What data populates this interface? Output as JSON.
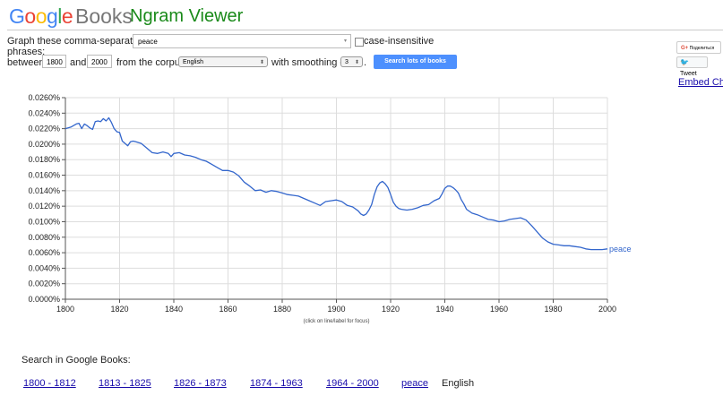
{
  "header": {
    "brand_google": "Google",
    "brand_books": "Books",
    "app_title": "Ngram Viewer"
  },
  "form": {
    "graph_label": "Graph these comma-separated",
    "phrases_label": "phrases:",
    "query_value": "peace",
    "case_insensitive_label": "case-insensitive",
    "case_insensitive_checked": false,
    "between_label": "between",
    "year_start": "1800",
    "and_label": "and",
    "year_end": "2000",
    "corpus_label": "from the corpus",
    "corpus_value": "English",
    "smoothing_label": "with smoothing of",
    "smoothing_value": "3",
    "period": ".",
    "search_button": "Search lots of books"
  },
  "share": {
    "gplus_icon": "G+",
    "gplus_label": "Поделиться",
    "tweet_icon": "twitter-bird-icon",
    "tweet_label": "Tweet",
    "embed_label": "Embed Cha"
  },
  "chart_data": {
    "type": "line",
    "xlim": [
      1800,
      2000
    ],
    "ylim": [
      0,
      0.026
    ],
    "x_ticks": [
      "1800",
      "1820",
      "1840",
      "1860",
      "1880",
      "1900",
      "1920",
      "1940",
      "1960",
      "1980",
      "2000"
    ],
    "y_ticks": [
      "0.0000%",
      "0.0020%",
      "0.0040%",
      "0.0060%",
      "0.0080%",
      "0.0100%",
      "0.0120%",
      "0.0140%",
      "0.0160%",
      "0.0180%",
      "0.0200%",
      "0.0220%",
      "0.0240%",
      "0.0260%"
    ],
    "note": "(click on line/label for focus)",
    "grid": true,
    "series": [
      {
        "name": "peace",
        "color": "#3366cc",
        "x": [
          1800,
          1802,
          1804,
          1805,
          1806,
          1807,
          1808,
          1809,
          1810,
          1811,
          1812,
          1813,
          1814,
          1815,
          1816,
          1817,
          1818,
          1819,
          1820,
          1821,
          1822,
          1823,
          1824,
          1825,
          1826,
          1828,
          1830,
          1832,
          1834,
          1836,
          1838,
          1839,
          1840,
          1842,
          1844,
          1846,
          1848,
          1850,
          1852,
          1854,
          1856,
          1858,
          1860,
          1862,
          1864,
          1866,
          1868,
          1870,
          1872,
          1874,
          1876,
          1878,
          1880,
          1882,
          1884,
          1886,
          1888,
          1890,
          1892,
          1894,
          1896,
          1898,
          1900,
          1902,
          1904,
          1906,
          1908,
          1909,
          1910,
          1911,
          1912,
          1913,
          1914,
          1915,
          1916,
          1917,
          1918,
          1919,
          1920,
          1921,
          1922,
          1923,
          1924,
          1926,
          1928,
          1930,
          1932,
          1934,
          1936,
          1938,
          1939,
          1940,
          1941,
          1942,
          1943,
          1944,
          1945,
          1946,
          1947,
          1948,
          1950,
          1952,
          1954,
          1956,
          1958,
          1960,
          1962,
          1964,
          1966,
          1968,
          1970,
          1972,
          1974,
          1976,
          1978,
          1980,
          1982,
          1984,
          1986,
          1988,
          1990,
          1992,
          1994,
          1996,
          1998,
          2000
        ],
        "y": [
          0.022,
          0.0222,
          0.0226,
          0.0227,
          0.022,
          0.0226,
          0.0224,
          0.0221,
          0.0219,
          0.0229,
          0.023,
          0.0229,
          0.0233,
          0.023,
          0.0234,
          0.0228,
          0.022,
          0.0216,
          0.0215,
          0.0204,
          0.0201,
          0.0198,
          0.0203,
          0.0204,
          0.0203,
          0.0201,
          0.0195,
          0.0189,
          0.0188,
          0.019,
          0.0188,
          0.0184,
          0.0188,
          0.0189,
          0.0186,
          0.0185,
          0.0183,
          0.018,
          0.0178,
          0.0174,
          0.017,
          0.0166,
          0.0166,
          0.0164,
          0.0159,
          0.0151,
          0.0146,
          0.014,
          0.0141,
          0.0138,
          0.014,
          0.0139,
          0.0137,
          0.0135,
          0.0134,
          0.0133,
          0.013,
          0.0127,
          0.0124,
          0.0121,
          0.0126,
          0.0127,
          0.0128,
          0.0126,
          0.0121,
          0.0119,
          0.0114,
          0.011,
          0.0108,
          0.011,
          0.0115,
          0.0122,
          0.0135,
          0.0145,
          0.015,
          0.0152,
          0.0149,
          0.0144,
          0.0135,
          0.0125,
          0.012,
          0.0117,
          0.0116,
          0.0115,
          0.0116,
          0.0118,
          0.0121,
          0.0122,
          0.0127,
          0.013,
          0.0136,
          0.0143,
          0.0146,
          0.0146,
          0.0144,
          0.0141,
          0.0137,
          0.0129,
          0.0123,
          0.0116,
          0.0111,
          0.0109,
          0.0106,
          0.0103,
          0.0102,
          0.01,
          0.0101,
          0.0103,
          0.0104,
          0.0105,
          0.0102,
          0.0095,
          0.0087,
          0.0079,
          0.0074,
          0.0071,
          0.007,
          0.0069,
          0.0069,
          0.0068,
          0.0067,
          0.0065,
          0.0064,
          0.0064,
          0.0064,
          0.0065
        ]
      }
    ]
  },
  "footer": {
    "search_label": "Search in Google Books:",
    "ranges": [
      "1800 - 1812",
      "1813 - 1825",
      "1826 - 1873",
      "1874 - 1963",
      "1964 - 2000"
    ],
    "term_link": "peace",
    "corpus": "English"
  }
}
